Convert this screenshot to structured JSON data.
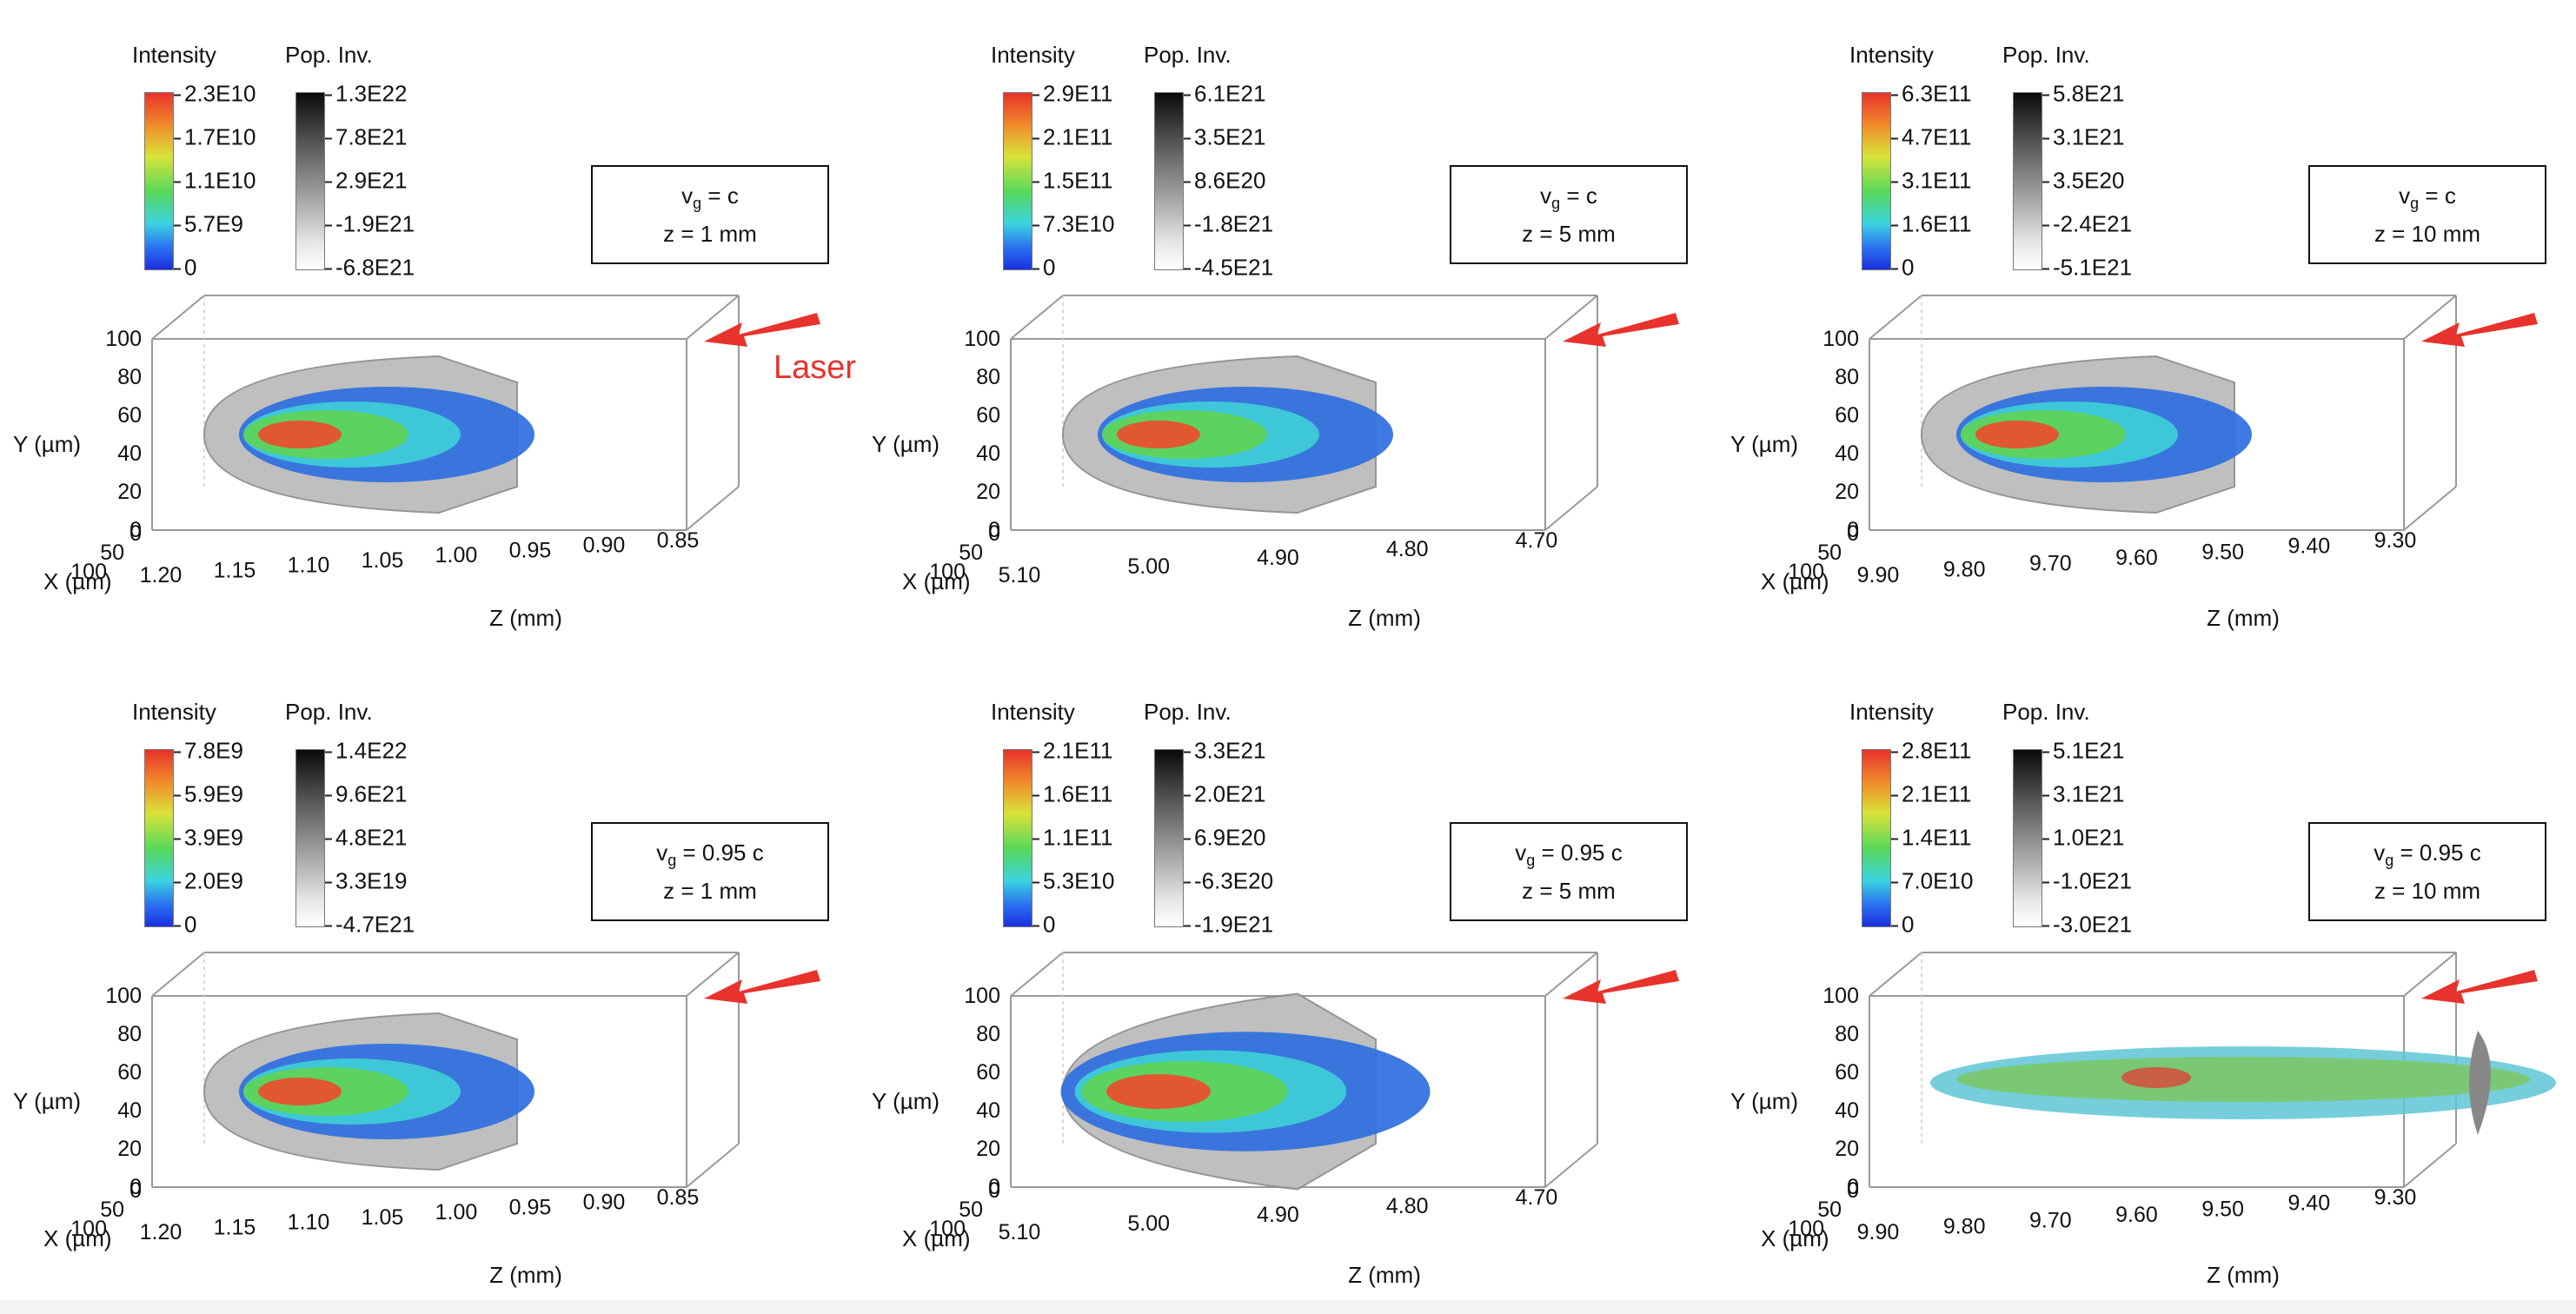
{
  "legend_titles": {
    "intensity": "Intensity",
    "population": "Pop. Inv."
  },
  "axes": {
    "y_label": "Y (µm)",
    "x_label": "X (µm)",
    "z_label": "Z (mm)"
  },
  "laser_label": "Laser",
  "y_ticks": [
    "100",
    "80",
    "60",
    "40",
    "20",
    "0"
  ],
  "x_ticks": [
    "0",
    "50",
    "100"
  ],
  "colors": {
    "laser_arrow": "#e8322c",
    "box_line": "#999999"
  },
  "panels": [
    {
      "id": "p1",
      "vg": "c",
      "z": "z = 1 mm",
      "intensity_ticks": [
        "2.3E10",
        "1.7E10",
        "1.1E10",
        "5.7E9",
        "0"
      ],
      "pop_ticks": [
        "1.3E22",
        "7.8E21",
        "2.9E21",
        "-1.9E21",
        "-6.8E21"
      ],
      "z_ticks": [
        "1.20",
        "1.15",
        "1.10",
        "1.05",
        "1.00",
        "0.95",
        "0.90",
        "0.85"
      ],
      "show_laser_label": true
    },
    {
      "id": "p2",
      "vg": "c",
      "z": "z = 5 mm",
      "intensity_ticks": [
        "2.9E11",
        "2.1E11",
        "1.5E11",
        "7.3E10",
        "0"
      ],
      "pop_ticks": [
        "6.1E21",
        "3.5E21",
        "8.6E20",
        "-1.8E21",
        "-4.5E21"
      ],
      "z_ticks": [
        "5.10",
        "5.00",
        "4.90",
        "4.80",
        "4.70"
      ],
      "show_laser_label": false
    },
    {
      "id": "p3",
      "vg": "c",
      "z": "z = 10 mm",
      "intensity_ticks": [
        "6.3E11",
        "4.7E11",
        "3.1E11",
        "1.6E11",
        "0"
      ],
      "pop_ticks": [
        "5.8E21",
        "3.1E21",
        "3.5E20",
        "-2.4E21",
        "-5.1E21"
      ],
      "z_ticks": [
        "9.90",
        "9.80",
        "9.70",
        "9.60",
        "9.50",
        "9.40",
        "9.30"
      ],
      "show_laser_label": false
    },
    {
      "id": "p4",
      "vg": "0.95 c",
      "z": "z = 1 mm",
      "intensity_ticks": [
        "7.8E9",
        "5.9E9",
        "3.9E9",
        "2.0E9",
        "0"
      ],
      "pop_ticks": [
        "1.4E22",
        "9.6E21",
        "4.8E21",
        "3.3E19",
        "-4.7E21"
      ],
      "z_ticks": [
        "1.20",
        "1.15",
        "1.10",
        "1.05",
        "1.00",
        "0.95",
        "0.90",
        "0.85"
      ],
      "show_laser_label": false
    },
    {
      "id": "p5",
      "vg": "0.95 c",
      "z": "z = 5 mm",
      "intensity_ticks": [
        "2.1E11",
        "1.6E11",
        "1.1E11",
        "5.3E10",
        "0"
      ],
      "pop_ticks": [
        "3.3E21",
        "2.0E21",
        "6.9E20",
        "-6.3E20",
        "-1.9E21"
      ],
      "z_ticks": [
        "5.10",
        "5.00",
        "4.90",
        "4.80",
        "4.70"
      ],
      "show_laser_label": false
    },
    {
      "id": "p6",
      "vg": "0.95 c",
      "z": "z = 10 mm",
      "intensity_ticks": [
        "2.8E11",
        "2.1E11",
        "1.4E11",
        "7.0E10",
        "0"
      ],
      "pop_ticks": [
        "5.1E21",
        "3.1E21",
        "1.0E21",
        "-1.0E21",
        "-3.0E21"
      ],
      "z_ticks": [
        "9.90",
        "9.80",
        "9.70",
        "9.60",
        "9.50",
        "9.40",
        "9.30"
      ],
      "show_laser_label": false
    }
  ]
}
